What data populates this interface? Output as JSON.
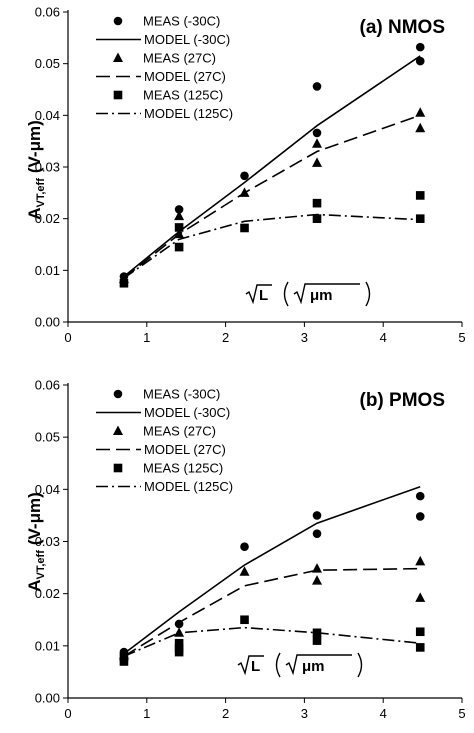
{
  "chart_data": [
    {
      "type": "scatter",
      "title": "(a) NMOS",
      "ylabel_main": "A",
      "ylabel_sub": "VT,eff",
      "ylabel_unit": "(V-μm)",
      "xlabel_main": "L",
      "xlabel_unit": "μm",
      "xlim": [
        0,
        5
      ],
      "ylim": [
        0,
        0.06
      ],
      "xticks": [
        "0",
        "1",
        "2",
        "3",
        "4",
        "5"
      ],
      "yticks": [
        "0.00",
        "0.01",
        "0.02",
        "0.03",
        "0.04",
        "0.05",
        "0.06"
      ],
      "grid": false,
      "legend_position": "top-left",
      "series": [
        {
          "name": "MEAS (-30C)",
          "kind": "marker",
          "marker": "circle",
          "x": [
            0.71,
            1.41,
            2.24,
            3.16,
            3.16,
            4.47,
            4.47
          ],
          "y": [
            0.0088,
            0.0218,
            0.0283,
            0.0456,
            0.0366,
            0.0532,
            0.0505
          ]
        },
        {
          "name": "MODEL (-30C)",
          "kind": "line",
          "dash": "solid",
          "x": [
            0.71,
            1.41,
            2.24,
            3.16,
            4.47
          ],
          "y": [
            0.0088,
            0.0175,
            0.027,
            0.038,
            0.0515
          ]
        },
        {
          "name": "MEAS (27C)",
          "kind": "marker",
          "marker": "triangle",
          "x": [
            0.71,
            1.41,
            1.41,
            2.24,
            3.16,
            3.16,
            4.47,
            4.47
          ],
          "y": [
            0.0083,
            0.0205,
            0.017,
            0.025,
            0.0345,
            0.0308,
            0.0405,
            0.0375
          ]
        },
        {
          "name": "MODEL (27C)",
          "kind": "line",
          "dash": "dashed",
          "x": [
            0.71,
            1.41,
            2.24,
            3.16,
            4.47
          ],
          "y": [
            0.0085,
            0.017,
            0.025,
            0.033,
            0.04
          ]
        },
        {
          "name": "MEAS (125C)",
          "kind": "marker",
          "marker": "square",
          "x": [
            0.71,
            1.41,
            1.41,
            2.24,
            3.16,
            3.16,
            4.47,
            4.47
          ],
          "y": [
            0.0075,
            0.0183,
            0.0145,
            0.0182,
            0.023,
            0.02,
            0.0245,
            0.02
          ]
        },
        {
          "name": "MODEL (125C)",
          "kind": "line",
          "dash": "dashdot",
          "x": [
            0.71,
            1.41,
            2.24,
            3.16,
            4.47
          ],
          "y": [
            0.0085,
            0.016,
            0.0195,
            0.0208,
            0.0198
          ]
        }
      ]
    },
    {
      "type": "scatter",
      "title": "(b) PMOS",
      "ylabel_main": "A",
      "ylabel_sub": "VT,eff",
      "ylabel_unit": "(V-μm)",
      "xlabel_main": "L",
      "xlabel_unit": "μm",
      "xlim": [
        0,
        5
      ],
      "ylim": [
        0,
        0.06
      ],
      "xticks": [
        "0",
        "1",
        "2",
        "3",
        "4",
        "5"
      ],
      "yticks": [
        "0.00",
        "0.01",
        "0.02",
        "0.03",
        "0.04",
        "0.05",
        "0.06"
      ],
      "grid": false,
      "legend_position": "top-left",
      "series": [
        {
          "name": "MEAS (-30C)",
          "kind": "marker",
          "marker": "circle",
          "x": [
            0.71,
            1.41,
            2.24,
            3.16,
            3.16,
            4.47,
            4.47
          ],
          "y": [
            0.0088,
            0.0142,
            0.029,
            0.035,
            0.0315,
            0.0387,
            0.0348
          ]
        },
        {
          "name": "MODEL (-30C)",
          "kind": "line",
          "dash": "solid",
          "x": [
            0.71,
            1.41,
            2.24,
            3.16,
            4.47
          ],
          "y": [
            0.0085,
            0.0165,
            0.0255,
            0.0335,
            0.0405
          ]
        },
        {
          "name": "MEAS (27C)",
          "kind": "marker",
          "marker": "triangle",
          "x": [
            0.71,
            1.41,
            2.24,
            3.16,
            3.16,
            4.47,
            4.47
          ],
          "y": [
            0.0082,
            0.0125,
            0.0242,
            0.0248,
            0.0225,
            0.0262,
            0.0192
          ]
        },
        {
          "name": "MODEL (27C)",
          "kind": "line",
          "dash": "dashed",
          "x": [
            0.71,
            1.41,
            2.24,
            3.16,
            4.47
          ],
          "y": [
            0.008,
            0.0145,
            0.0215,
            0.0245,
            0.0248
          ]
        },
        {
          "name": "MEAS (125C)",
          "kind": "marker",
          "marker": "square",
          "x": [
            0.71,
            0.71,
            1.41,
            1.41,
            1.41,
            2.24,
            3.16,
            3.16,
            4.47,
            4.47
          ],
          "y": [
            0.0078,
            0.007,
            0.0105,
            0.0095,
            0.0088,
            0.015,
            0.0125,
            0.011,
            0.0127,
            0.0097
          ]
        },
        {
          "name": "MODEL (125C)",
          "kind": "line",
          "dash": "dashdot",
          "x": [
            0.71,
            1.41,
            2.24,
            3.16,
            4.47
          ],
          "y": [
            0.008,
            0.0125,
            0.0135,
            0.0125,
            0.0105
          ]
        }
      ]
    }
  ]
}
